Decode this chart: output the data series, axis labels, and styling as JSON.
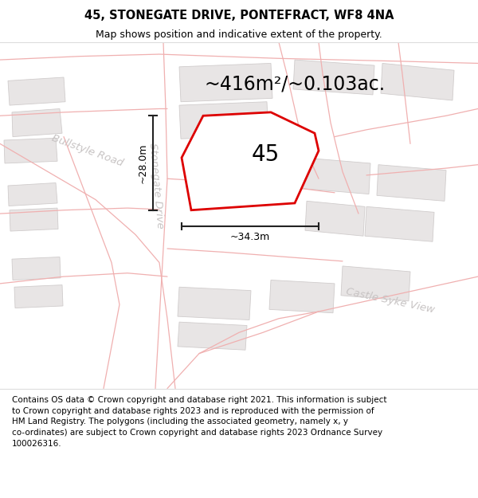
{
  "title_line1": "45, STONEGATE DRIVE, PONTEFRACT, WF8 4NA",
  "title_line2": "Map shows position and indicative extent of the property.",
  "area_text": "~416m²/~0.103ac.",
  "property_number": "45",
  "dim_width": "~34.3m",
  "dim_height": "~28.0m",
  "road_label1": "Bullstyle Road",
  "road_label2": "Stonegate Drive",
  "road_label3": "Castle Syke View",
  "footer": "Contains OS data © Crown copyright and database right 2021. This information is subject\nto Crown copyright and database rights 2023 and is reproduced with the permission of\nHM Land Registry. The polygons (including the associated geometry, namely x, y\nco-ordinates) are subject to Crown copyright and database rights 2023 Ordnance Survey\n100026316.",
  "map_bg": "#f7f5f5",
  "block_color": "#e8e5e5",
  "block_edge": "#d0cccc",
  "road_color": "#f0b0b0",
  "property_edge": "#dd0000",
  "dim_color": "#222222",
  "road_text_color": "#c8c4c4",
  "title_fontsize": 10.5,
  "subtitle_fontsize": 9,
  "area_fontsize": 17,
  "footer_fontsize": 7.5
}
